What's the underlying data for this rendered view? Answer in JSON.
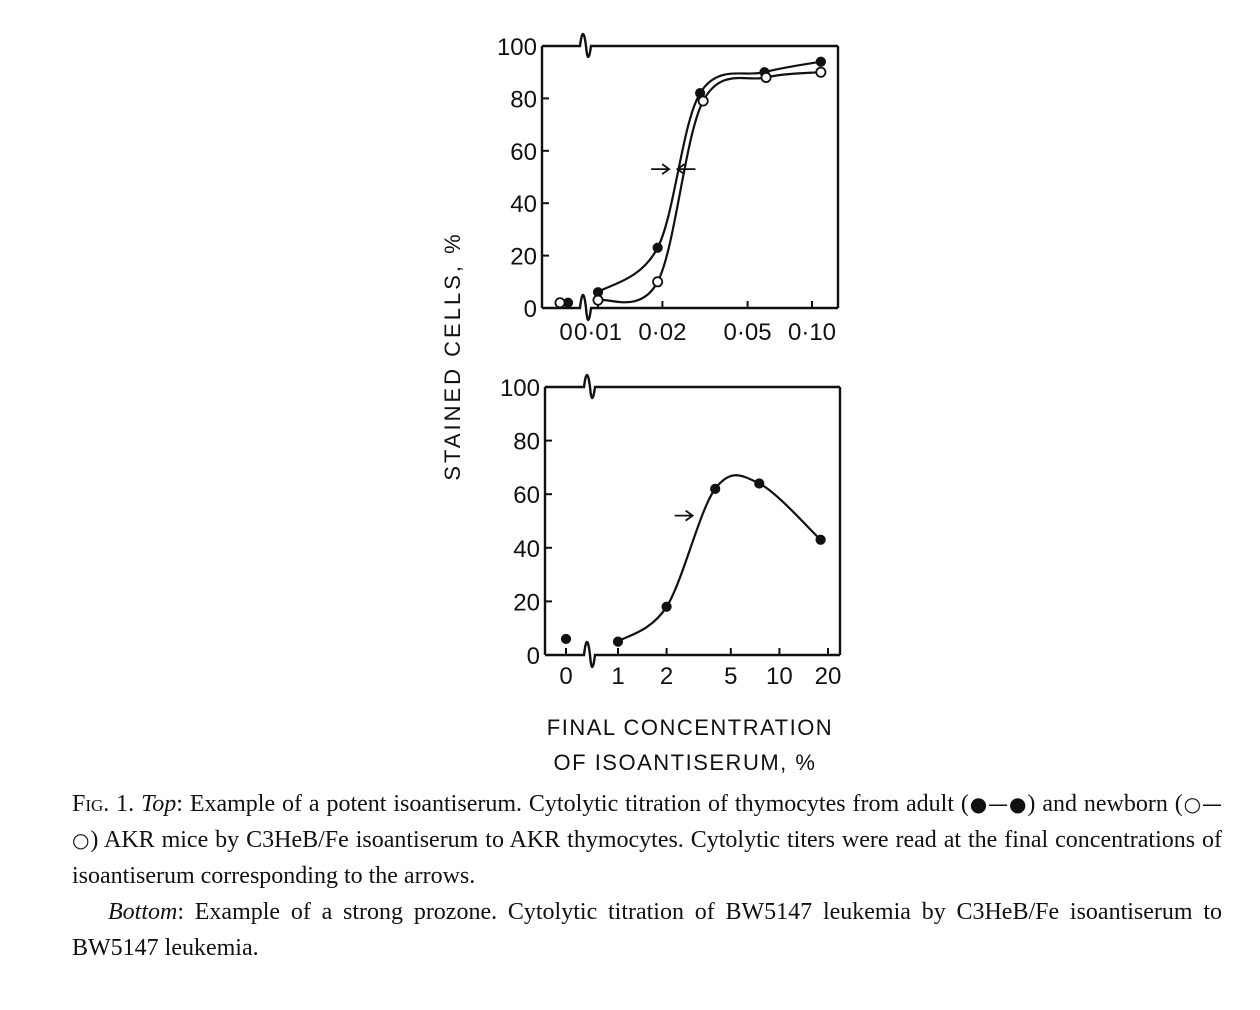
{
  "chart_data": [
    {
      "type": "line",
      "panel": "Top",
      "x_scale": "log",
      "x_tick_labels": [
        "0",
        "0·01",
        "0·02",
        "0·05",
        "0·10"
      ],
      "x_ticks": [
        0.01,
        0.02,
        0.05,
        0.1
      ],
      "xlim": [
        0.0065,
        0.13
      ],
      "y_tick_labels": [
        "100",
        "80",
        "60",
        "40",
        "20",
        "0"
      ],
      "y_ticks": [
        100,
        80,
        60,
        40,
        20,
        0
      ],
      "ylim": [
        0,
        100
      ],
      "series": [
        {
          "marker": "filled",
          "points": [
            [
              0.01,
              6
            ],
            [
              0.019,
              23
            ],
            [
              0.03,
              82
            ],
            [
              0.06,
              90
            ],
            [
              0.11,
              94
            ]
          ],
          "zero_point": [
            [
              0,
              2
            ]
          ]
        },
        {
          "marker": "open",
          "points": [
            [
              0.01,
              3
            ],
            [
              0.019,
              10
            ],
            [
              0.031,
              79
            ],
            [
              0.061,
              88
            ],
            [
              0.11,
              90
            ]
          ],
          "zero_point": [
            [
              0,
              2
            ]
          ]
        }
      ],
      "titer_arrows": [
        {
          "x": 0.0215,
          "y": 53,
          "direction": "right"
        },
        {
          "x": 0.0235,
          "y": 53,
          "direction": "left"
        }
      ]
    },
    {
      "type": "line",
      "panel": "Bottom",
      "x_scale": "log",
      "x_tick_labels": [
        "0",
        "1",
        "2",
        "5",
        "10",
        "20"
      ],
      "x_ticks": [
        1,
        2,
        5,
        10,
        20
      ],
      "xlim": [
        0.7,
        25
      ],
      "y_tick_labels": [
        "100",
        "80",
        "60",
        "40",
        "20",
        "0"
      ],
      "y_ticks": [
        100,
        80,
        60,
        40,
        20,
        0
      ],
      "ylim": [
        0,
        100
      ],
      "series": [
        {
          "marker": "filled",
          "points": [
            [
              1,
              5
            ],
            [
              2,
              18
            ],
            [
              4,
              62
            ],
            [
              7.5,
              64
            ],
            [
              18,
              43
            ]
          ],
          "zero_point": [
            [
              0,
              6
            ]
          ]
        }
      ],
      "titer_arrows": [
        {
          "x": 2.9,
          "y": 52,
          "direction": "right"
        }
      ]
    }
  ],
  "y_axis_title": "STAINED CELLS, %",
  "x_axis_title_line1": "FINAL CONCENTRATION",
  "x_axis_title_line2": "OF ISOANTISERUM, %",
  "caption": {
    "fig_label": "Fig. 1.",
    "top_label": "Top",
    "top_text_1": ": Example of a potent isoantiserum. Cytolytic titration of thymocytes from adult (",
    "filled_symbol": "●—●",
    "top_text_2": ") and newborn (",
    "open_symbol": "○—○",
    "top_text_3": ") AKR mice by C3HeB/Fe isoantiserum to AKR thymocytes. Cytolytic titers were read at the final concentrations of isoantiserum corresponding to the arrows.",
    "bottom_label": "Bottom",
    "bottom_text": ": Example of a strong prozone. Cytolytic titration of BW5147 leukemia by C3HeB/Fe isoantiserum to BW5147 leukemia."
  },
  "colors": {
    "ink": "#111111",
    "background": "#ffffff"
  }
}
